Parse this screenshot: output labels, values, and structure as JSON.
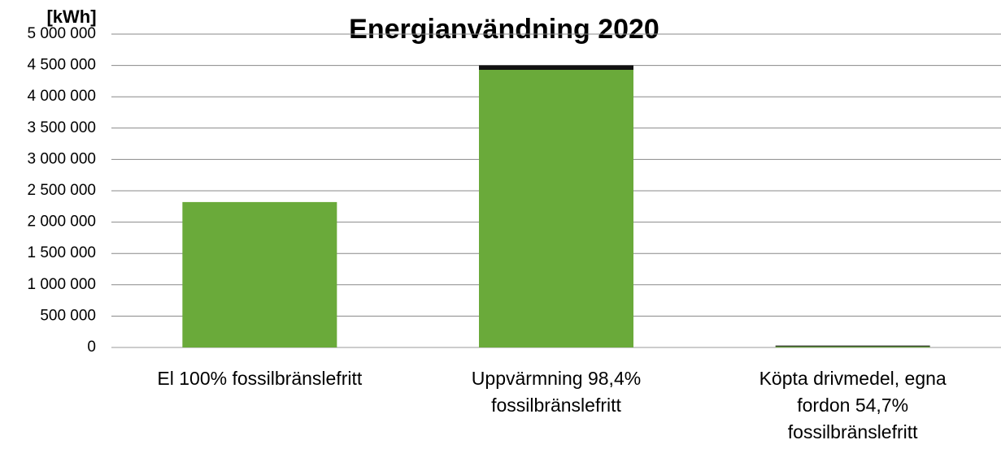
{
  "chart_data": {
    "type": "stacked_bar",
    "title": "Energianvändning 2020",
    "y_axis_label": "[kWh]",
    "categories": [
      "El 100% fossilbränslefritt",
      "Uppvärmning 98,4% fossilbränslefritt",
      "Köpta drivmedel, egna fordon 54,7% fossilbränslefritt"
    ],
    "series": [
      {
        "color": "#6aaa3a",
        "values": [
          2320000,
          4430000,
          16000
        ]
      },
      {
        "color": "#111111",
        "values": [
          0,
          72000,
          14000
        ]
      }
    ],
    "ylim": [
      0,
      5000000
    ],
    "yticks": [
      0,
      {
        "value": 500000,
        "label": "500 000"
      },
      {
        "value": 1000000,
        "label": "1 000 000"
      },
      {
        "value": 1500000,
        "label": "1 500 000"
      },
      {
        "value": 2000000,
        "label": "2 000 000"
      },
      {
        "value": 2500000,
        "label": "2 500 000"
      },
      {
        "value": 3000000,
        "label": "3 000 000"
      },
      {
        "value": 3500000,
        "label": "3 500 000"
      },
      {
        "value": 4000000,
        "label": "4 000 000"
      },
      {
        "value": 4500000,
        "label": "4 500 000"
      },
      {
        "value": 5000000,
        "label": "5 000 000"
      }
    ],
    "grid": true
  }
}
